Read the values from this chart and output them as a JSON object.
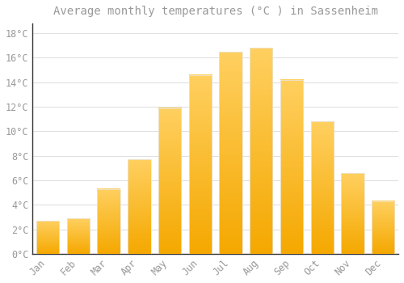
{
  "title": "Average monthly temperatures (°C ) in Sassenheim",
  "months": [
    "Jan",
    "Feb",
    "Mar",
    "Apr",
    "May",
    "Jun",
    "Jul",
    "Aug",
    "Sep",
    "Oct",
    "Nov",
    "Dec"
  ],
  "values": [
    2.7,
    2.9,
    5.3,
    7.7,
    11.9,
    14.6,
    16.5,
    16.8,
    14.2,
    10.8,
    6.6,
    4.3
  ],
  "bar_color_bottom": "#F5A800",
  "bar_color_top": "#FFD060",
  "bar_edge_color": "#E8E8E8",
  "background_color": "#FFFFFF",
  "grid_color": "#E0E0E0",
  "ytick_labels": [
    "0°C",
    "2°C",
    "4°C",
    "6°C",
    "8°C",
    "10°C",
    "12°C",
    "14°C",
    "16°C",
    "18°C"
  ],
  "ytick_values": [
    0,
    2,
    4,
    6,
    8,
    10,
    12,
    14,
    16,
    18
  ],
  "ylim": [
    0,
    18.8
  ],
  "title_fontsize": 10,
  "tick_fontsize": 8.5,
  "text_color": "#999999",
  "spine_color": "#333333"
}
